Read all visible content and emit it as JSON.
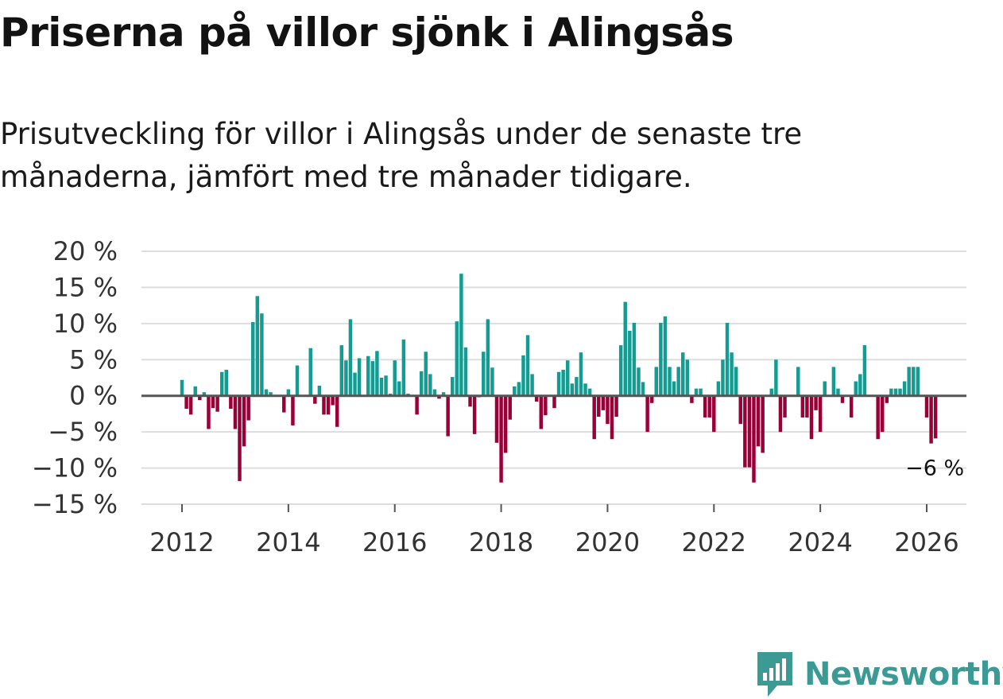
{
  "title": "Priserna på villor sjönk i Alingsås",
  "subtitle": "Prisutveckling för villor i Alingsås under de senaste tre månaderna, jämfört med tre månader tidigare.",
  "logo": {
    "text": "Newsworthy",
    "icon": "newsworthy-logo-icon"
  },
  "colors": {
    "positive": "#149c92",
    "negative": "#9a0038",
    "grid": "#dddddd",
    "zero": "#555555"
  },
  "chart_data": {
    "type": "bar",
    "title": "Priserna på villor sjönk i Alingsås",
    "xlabel": "",
    "ylabel": "",
    "ylim": [
      -15,
      20
    ],
    "y_ticks": [
      20,
      15,
      10,
      5,
      0,
      -5,
      -10,
      -15
    ],
    "y_tick_labels": [
      "20 %",
      "15 %",
      "10 %",
      "5 %",
      "0 %",
      "−5 %",
      "−10 %",
      "−15 %"
    ],
    "x_ticks": [
      2012,
      2014,
      2016,
      2018,
      2020,
      2022,
      2024,
      2026
    ],
    "x_tick_labels": [
      "2012",
      "2014",
      "2016",
      "2018",
      "2020",
      "2022",
      "2024",
      "2026"
    ],
    "start": "2012-01",
    "frequency": "monthly",
    "series": [
      {
        "name": "Prisutveckling",
        "values": [
          2.2,
          -1.8,
          -2.6,
          1.3,
          -0.6,
          0.5,
          -4.6,
          -1.7,
          -2.2,
          3.3,
          3.6,
          -1.8,
          -4.6,
          -11.8,
          -7.0,
          -3.4,
          10.2,
          13.8,
          11.4,
          0.9,
          0.5,
          0,
          0,
          -2.3,
          0.9,
          -4.1,
          4.2,
          0,
          0,
          6.6,
          -1.1,
          1.4,
          -2.6,
          -2.6,
          -1.3,
          -4.3,
          7.0,
          4.9,
          10.6,
          3.2,
          5.2,
          0,
          5.5,
          4.8,
          6.2,
          2.5,
          2.8,
          0.3,
          4.9,
          2.0,
          7.8,
          0.3,
          0,
          -2.6,
          3.4,
          6.1,
          3.0,
          0.9,
          -0.4,
          0.5,
          -5.6,
          2.6,
          10.3,
          16.9,
          6.7,
          -1.5,
          -5.3,
          -0.2,
          6.1,
          10.6,
          3.9,
          -6.5,
          -12.0,
          -7.9,
          -3.3,
          1.3,
          1.9,
          5.6,
          8.4,
          3.0,
          -0.8,
          -4.6,
          -2.7,
          0,
          -1.7,
          3.3,
          3.6,
          4.9,
          1.7,
          2.6,
          6.0,
          1.7,
          1.0,
          -6.0,
          -2.9,
          -2.0,
          -3.9,
          -6.0,
          -2.9,
          7.0,
          13.0,
          9.0,
          10.1,
          3.9,
          1.9,
          -5.0,
          -1.0,
          4.0,
          10.1,
          11.0,
          4.0,
          2.0,
          4.0,
          6.0,
          5.0,
          -1.0,
          1.0,
          1.0,
          -3.0,
          -3.0,
          -5.0,
          2.0,
          5.0,
          10.1,
          6.0,
          4.0,
          -3.9,
          -9.9,
          -9.9,
          -12.0,
          -7.0,
          -7.9,
          0,
          1.0,
          5.0,
          -5.0,
          -3.0,
          0,
          0,
          4.0,
          -3.0,
          -3.0,
          -6.0,
          -2.0,
          -5.0,
          2.0,
          0,
          4.0,
          1.0,
          -1.0,
          0,
          -3.0,
          2.0,
          3.0,
          7.0,
          0,
          0,
          -6.0,
          -5.0,
          -1.0,
          1.0,
          1.0,
          1.0,
          2.0,
          4.0,
          4.0,
          4.0,
          0,
          -3.0,
          -6.6,
          -5.9
        ]
      }
    ],
    "annotations": [
      {
        "label": "−6 %",
        "target": "last value"
      }
    ]
  }
}
